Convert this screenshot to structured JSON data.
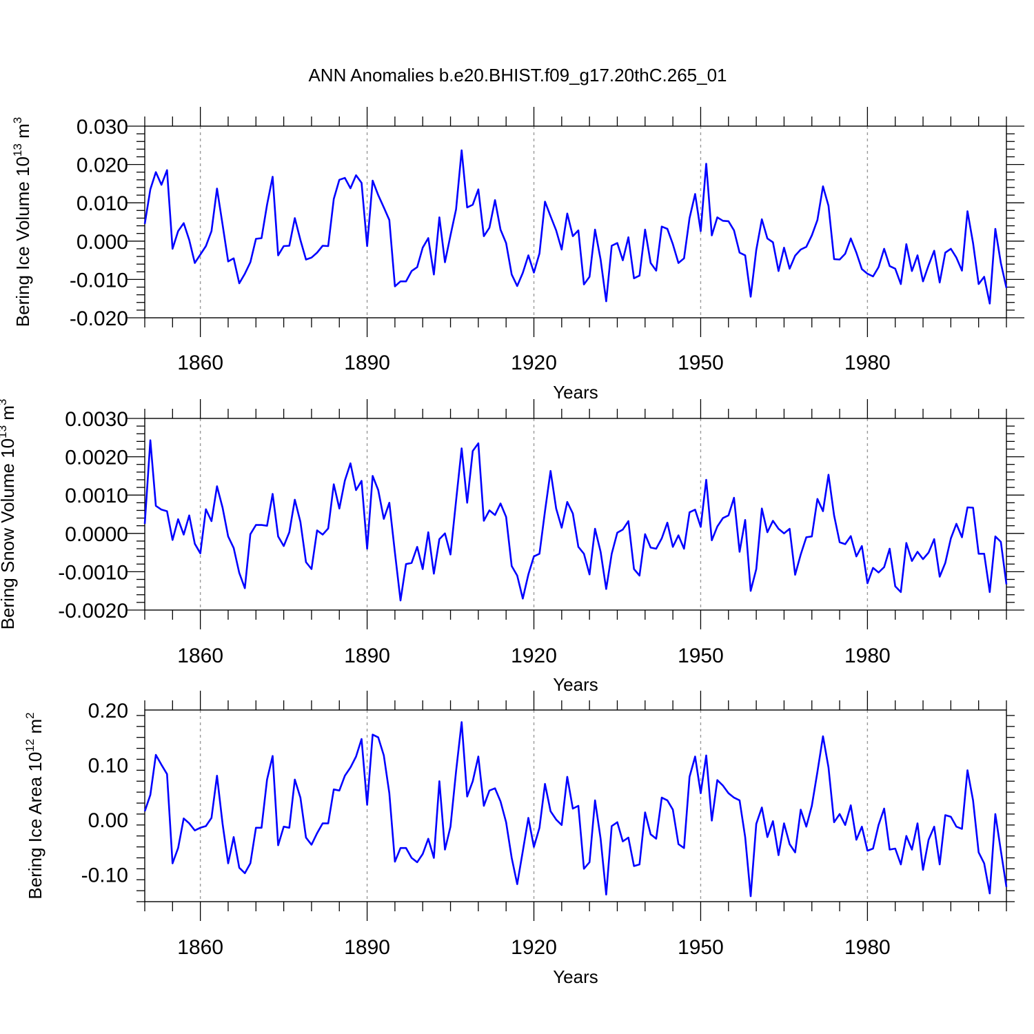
{
  "title": "ANN Anomalies b.e20.BHIST.f09_g17.20thC.265_01",
  "colors": {
    "line": "#0000ff",
    "axis": "#000000",
    "grid": "#999999"
  },
  "chart_data": [
    {
      "type": "line",
      "ylabel_main": "Bering Ice Volume 10",
      "ylabel_exp": "13",
      "ylabel_unit": " m",
      "ylabel_unit_exp": "3",
      "xlabel": "Years",
      "xlim": [
        1850,
        2005
      ],
      "ylim": [
        -0.02,
        0.03
      ],
      "x_ticks": [
        1860,
        1890,
        1920,
        1950,
        1980
      ],
      "x_tick_labels": [
        "1860",
        "1890",
        "1920",
        "1950",
        "1980"
      ],
      "y_ticks": [
        -0.02,
        -0.01,
        0.0,
        0.01,
        0.02,
        0.03
      ],
      "y_tick_labels": [
        "-0.020",
        "-0.010",
        "0.000",
        "0.010",
        "0.020",
        "0.030"
      ],
      "x_start": 1850,
      "series": [
        {
          "name": "Bering Ice Volume",
          "values": [
            0.0045,
            0.0135,
            0.018,
            0.0147,
            0.0185,
            -0.002,
            0.0026,
            0.0047,
            0.0003,
            -0.0057,
            -0.0035,
            -0.0013,
            0.0026,
            0.0137,
            0.0043,
            -0.0053,
            -0.0045,
            -0.011,
            -0.0085,
            -0.0055,
            0.0006,
            0.0008,
            0.0095,
            0.0168,
            -0.0037,
            -0.0013,
            -0.0012,
            0.006,
            0.0003,
            -0.0048,
            -0.0043,
            -0.003,
            -0.0012,
            -0.0013,
            0.011,
            0.016,
            0.0165,
            0.0138,
            0.0172,
            0.0152,
            -0.0013,
            0.0158,
            0.012,
            0.0088,
            0.0055,
            -0.0118,
            -0.0105,
            -0.0105,
            -0.0078,
            -0.0068,
            -0.0017,
            0.0008,
            -0.0087,
            0.0062,
            -0.0055,
            0.0015,
            0.0083,
            0.0237,
            0.0088,
            0.0095,
            0.0135,
            0.0013,
            0.0035,
            0.0107,
            0.003,
            -0.0005,
            -0.0087,
            -0.0117,
            -0.0083,
            -0.0037,
            -0.0082,
            -0.0032,
            0.0103,
            0.0065,
            0.0028,
            -0.0022,
            0.0072,
            0.0013,
            0.0028,
            -0.0113,
            -0.0093,
            0.003,
            -0.0048,
            -0.0157,
            -0.0012,
            -0.0005,
            -0.005,
            0.001,
            -0.0097,
            -0.009,
            0.003,
            -0.0057,
            -0.0077,
            0.0038,
            0.0032,
            -0.0008,
            -0.0057,
            -0.0045,
            0.006,
            0.0123,
            0.0026,
            0.0202,
            0.0015,
            0.0062,
            0.0053,
            0.0052,
            0.0028,
            -0.003,
            -0.0037,
            -0.0145,
            -0.0023,
            0.0057,
            0.0007,
            -0.0003,
            -0.0078,
            -0.0017,
            -0.0072,
            -0.0038,
            -0.0022,
            -0.0015,
            0.0015,
            0.0055,
            0.0143,
            0.0092,
            -0.0047,
            -0.0048,
            -0.0033,
            0.0007,
            -0.003,
            -0.0073,
            -0.0085,
            -0.0092,
            -0.0068,
            -0.002,
            -0.0065,
            -0.0072,
            -0.0112,
            -0.0008,
            -0.0078,
            -0.0037,
            -0.0105,
            -0.0063,
            -0.0025,
            -0.0108,
            -0.003,
            -0.002,
            -0.0043,
            -0.0077,
            0.0078,
            -0.0005,
            -0.0112,
            -0.0093,
            -0.0163,
            0.0032,
            -0.0057,
            -0.0122
          ]
        }
      ]
    },
    {
      "type": "line",
      "ylabel_main": "Bering Snow Volume 10",
      "ylabel_exp": "13",
      "ylabel_unit": " m",
      "ylabel_unit_exp": "3",
      "xlabel": "Years",
      "xlim": [
        1850,
        2005
      ],
      "ylim": [
        -0.002,
        0.003
      ],
      "x_ticks": [
        1860,
        1890,
        1920,
        1950,
        1980
      ],
      "x_tick_labels": [
        "1860",
        "1890",
        "1920",
        "1950",
        "1980"
      ],
      "y_ticks": [
        -0.002,
        -0.001,
        0.0,
        0.001,
        0.002,
        0.003
      ],
      "y_tick_labels": [
        "-0.0020",
        "-0.0010",
        "0.0000",
        "0.0010",
        "0.0020",
        "0.0030"
      ],
      "x_start": 1850,
      "series": [
        {
          "name": "Bering Snow Volume",
          "values": [
            0.00025,
            0.00243,
            0.00072,
            0.00062,
            0.00058,
            -0.00017,
            0.00037,
            -3e-05,
            0.00047,
            -0.00027,
            -0.00052,
            0.00063,
            0.00032,
            0.00123,
            0.00067,
            -8e-05,
            -0.00038,
            -0.00103,
            -0.00143,
            -2e-05,
            0.00022,
            0.00022,
            0.0002,
            0.00103,
            -8e-05,
            -0.00033,
            3e-05,
            0.00088,
            0.0003,
            -0.00075,
            -0.00093,
            8e-05,
            -3e-05,
            0.00013,
            0.00128,
            0.00065,
            0.00138,
            0.00183,
            0.00113,
            0.00137,
            -0.0004,
            0.0015,
            0.00113,
            0.00038,
            0.0008,
            -0.0005,
            -0.00175,
            -0.0008,
            -0.00077,
            -0.00035,
            -0.00093,
            3e-05,
            -0.00105,
            -0.00015,
            0.0,
            -0.00055,
            0.00085,
            0.00222,
            0.0008,
            0.00215,
            0.00235,
            0.00033,
            0.0006,
            0.00048,
            0.00078,
            0.00043,
            -0.00085,
            -0.0011,
            -0.0017,
            -0.00107,
            -0.0006,
            -0.00053,
            0.00058,
            0.00163,
            0.00065,
            0.00015,
            0.00082,
            0.00052,
            -0.00035,
            -0.00053,
            -0.00107,
            0.00012,
            -0.00048,
            -0.00145,
            -0.00053,
            2e-05,
            0.0001,
            0.00032,
            -0.00093,
            -0.0011,
            -2e-05,
            -0.00037,
            -0.0004,
            -0.00013,
            0.00028,
            -0.00035,
            -5e-05,
            -0.0004,
            0.00055,
            0.00062,
            0.00017,
            0.0014,
            -0.00018,
            0.00018,
            0.0004,
            0.00047,
            0.00093,
            -0.00048,
            0.00035,
            -0.0015,
            -0.00093,
            0.00065,
            3e-05,
            0.00033,
            0.00012,
            0.0,
            0.00012,
            -0.00108,
            -0.00055,
            -0.0001,
            -8e-05,
            0.0009,
            0.00058,
            0.00153,
            0.00047,
            -0.00023,
            -0.00028,
            -7e-05,
            -0.0006,
            -0.00033,
            -0.0013,
            -0.0009,
            -0.00102,
            -0.00088,
            -0.0004,
            -0.00138,
            -0.00153,
            -0.00025,
            -0.00072,
            -0.00048,
            -0.00067,
            -0.0005,
            -0.00015,
            -0.00113,
            -0.00077,
            -0.00013,
            0.00025,
            -0.0001,
            0.00068,
            0.00067,
            -0.00053,
            -0.00053,
            -0.00153,
            -8e-05,
            -0.00022,
            -0.00133
          ]
        }
      ]
    },
    {
      "type": "line",
      "ylabel_main": "Bering Ice Area 10",
      "ylabel_exp": "12",
      "ylabel_unit": " m",
      "ylabel_unit_exp": "2",
      "xlabel": "Years",
      "xlim": [
        1850,
        2005
      ],
      "ylim": [
        -0.15,
        0.2
      ],
      "x_ticks": [
        1860,
        1890,
        1920,
        1950,
        1980
      ],
      "x_tick_labels": [
        "1860",
        "1890",
        "1920",
        "1950",
        "1980"
      ],
      "y_ticks": [
        -0.1,
        0.0,
        0.1,
        0.2
      ],
      "y_tick_labels": [
        "-0.10",
        "0.00",
        "0.10",
        "0.20"
      ],
      "x_start": 1850,
      "series": [
        {
          "name": "Bering Ice Area",
          "values": [
            0.015,
            0.045,
            0.118,
            0.1,
            0.083,
            -0.08,
            -0.052,
            0.002,
            -0.007,
            -0.02,
            -0.015,
            -0.012,
            0.003,
            0.08,
            -0.008,
            -0.08,
            -0.032,
            -0.088,
            -0.098,
            -0.08,
            -0.015,
            -0.015,
            0.073,
            0.116,
            -0.047,
            -0.013,
            -0.015,
            0.073,
            0.04,
            -0.033,
            -0.046,
            -0.025,
            -0.007,
            -0.007,
            0.055,
            0.053,
            0.08,
            0.095,
            0.115,
            0.147,
            0.027,
            0.155,
            0.15,
            0.117,
            0.048,
            -0.077,
            -0.052,
            -0.052,
            -0.07,
            -0.078,
            -0.063,
            -0.035,
            -0.07,
            0.07,
            -0.055,
            -0.013,
            0.088,
            0.178,
            0.042,
            0.07,
            0.115,
            0.025,
            0.053,
            0.057,
            0.033,
            -0.005,
            -0.07,
            -0.118,
            -0.058,
            0.003,
            -0.05,
            -0.015,
            0.065,
            0.015,
            0.0,
            -0.01,
            0.078,
            0.02,
            0.025,
            -0.09,
            -0.078,
            0.035,
            -0.035,
            -0.137,
            -0.012,
            -0.005,
            -0.04,
            -0.033,
            -0.085,
            -0.082,
            0.013,
            -0.027,
            -0.035,
            0.04,
            0.035,
            0.018,
            -0.045,
            -0.052,
            0.078,
            0.115,
            0.048,
            0.117,
            -0.002,
            0.072,
            0.062,
            0.048,
            0.04,
            0.035,
            -0.032,
            -0.14,
            -0.008,
            0.022,
            -0.032,
            -0.003,
            -0.065,
            -0.007,
            -0.045,
            -0.06,
            0.018,
            -0.013,
            0.025,
            0.087,
            0.152,
            0.095,
            -0.005,
            0.01,
            -0.01,
            0.026,
            -0.037,
            -0.013,
            -0.057,
            -0.053,
            -0.01,
            0.02,
            -0.055,
            -0.053,
            -0.082,
            -0.03,
            -0.055,
            -0.007,
            -0.092,
            -0.037,
            -0.013,
            -0.082,
            0.008,
            0.005,
            -0.013,
            -0.017,
            0.09,
            0.035,
            -0.06,
            -0.08,
            -0.135,
            0.01,
            -0.057,
            -0.123
          ]
        }
      ]
    }
  ]
}
